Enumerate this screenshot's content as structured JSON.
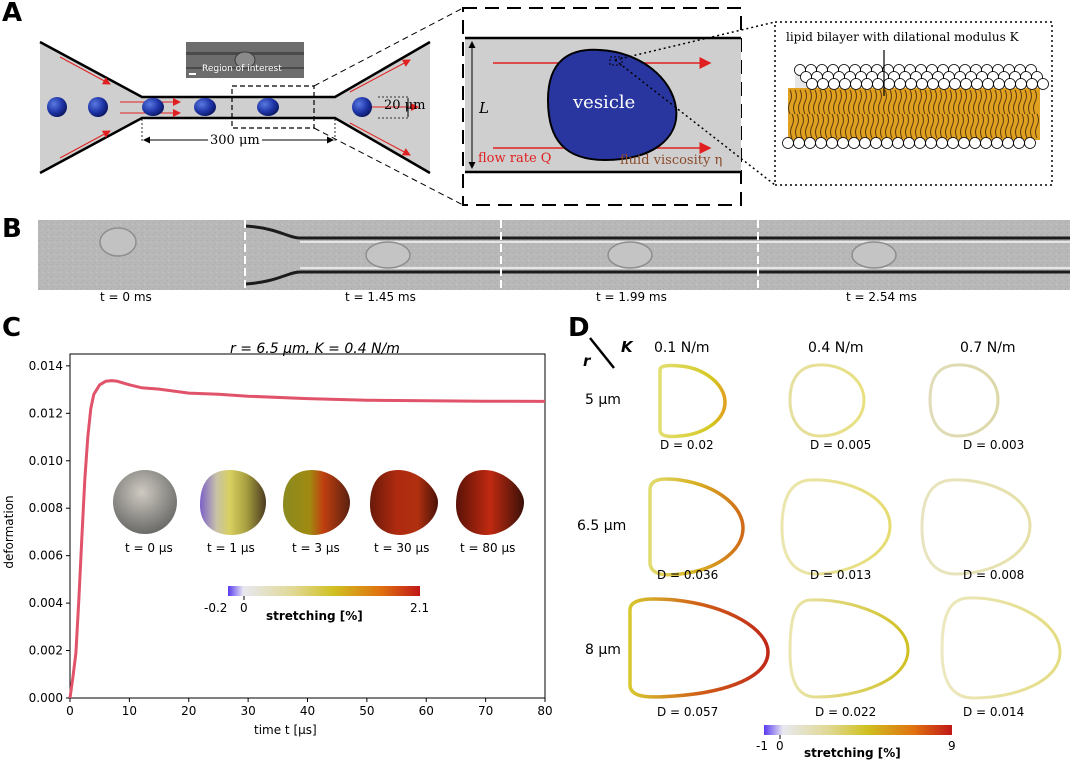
{
  "panels": {
    "a": "A",
    "b": "B",
    "c": "C",
    "d": "D"
  },
  "panel_a": {
    "region_of_interest": "Region of interest",
    "width_label": "20 μm",
    "length_label": "300 μm",
    "L_label": "L",
    "vesicle_label": "vesicle",
    "flow_rate_label": "flow rate Q",
    "viscosity_label": "fluid viscosity η",
    "bilayer_label": "lipid bilayer with dilational modulus K"
  },
  "panel_b": {
    "times": [
      "t = 0 ms",
      "t = 1.45 ms",
      "t = 1.99 ms",
      "t = 2.54 ms"
    ]
  },
  "panel_c": {
    "sphere_times": [
      "t = 0 μs",
      "t = 1 μs",
      "t = 3 μs",
      "t = 30 μs",
      "t = 80 μs"
    ],
    "colorbar": {
      "min_label": "-0.2",
      "zero_label": "0",
      "max_label": "2.1",
      "title": "stretching [%]"
    }
  },
  "panel_d": {
    "r_label": "r",
    "k_label": "K",
    "k_values": [
      "0.1 N/m",
      "0.4 N/m",
      "0.7 N/m"
    ],
    "r_values": [
      "5 μm",
      "6.5 μm",
      "8 μm"
    ],
    "d_values": [
      [
        "D = 0.02",
        "D = 0.005",
        "D = 0.003"
      ],
      [
        "D = 0.036",
        "D = 0.013",
        "D = 0.008"
      ],
      [
        "D = 0.057",
        "D = 0.022",
        "D = 0.014"
      ]
    ],
    "colorbar": {
      "min_label": "-1",
      "zero_label": "0",
      "max_label": "9",
      "title": "stretching [%]"
    }
  },
  "chart_data": {
    "type": "line",
    "title": "r = 6.5 μm, K = 0.4 N/m",
    "xlabel": "time t [μs]",
    "ylabel": "deformation",
    "xlim": [
      0,
      80
    ],
    "ylim": [
      0,
      0.0145
    ],
    "xticks": [
      0,
      10,
      20,
      30,
      40,
      50,
      60,
      70,
      80
    ],
    "yticks": [
      0.0,
      0.002,
      0.004,
      0.006,
      0.008,
      0.01,
      0.012,
      0.014
    ],
    "ytick_labels": [
      "0.000",
      "0.002",
      "0.004",
      "0.006",
      "0.008",
      "0.010",
      "0.012",
      "0.014"
    ],
    "color": "#e0536a",
    "x": [
      0,
      0.5,
      1,
      1.5,
      2,
      2.5,
      3,
      3.5,
      4,
      5,
      6,
      7,
      8,
      10,
      12,
      15,
      20,
      25,
      30,
      40,
      50,
      60,
      70,
      80
    ],
    "y": [
      0,
      0.0009,
      0.0019,
      0.0042,
      0.0068,
      0.0092,
      0.011,
      0.0122,
      0.0128,
      0.0132,
      0.01335,
      0.01338,
      0.01335,
      0.0132,
      0.01308,
      0.01302,
      0.01285,
      0.0128,
      0.01272,
      0.01262,
      0.01255,
      0.01253,
      0.01251,
      0.0125
    ]
  }
}
